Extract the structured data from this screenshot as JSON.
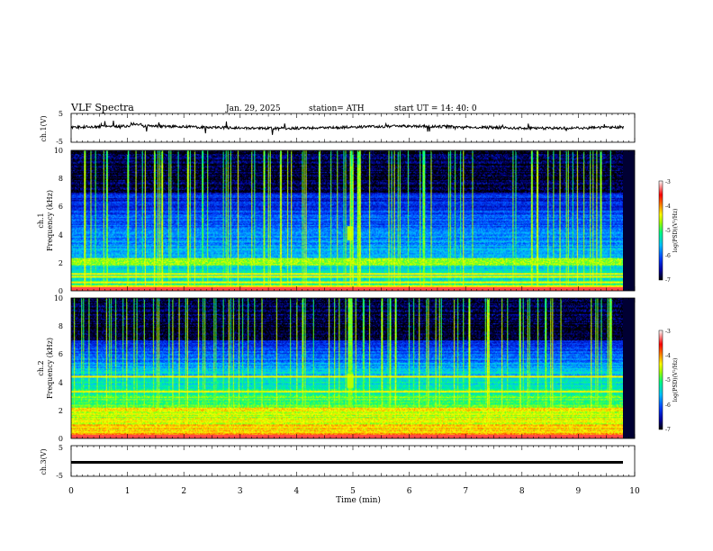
{
  "header": {
    "title": "VLF  Spectra",
    "date": "Jan. 29, 2025",
    "station": "station= ATH",
    "start_ut": "start  UT  =   14: 40: 0"
  },
  "chart_data": [
    {
      "type": "line",
      "title": "",
      "ylabel": "ch.1(V)",
      "ylim": [
        -5,
        5
      ],
      "yticks": [
        "5",
        "-5"
      ],
      "xlim": [
        0,
        10
      ],
      "series": [
        {
          "baseline_value": 0.2,
          "line_color": "#000000"
        }
      ],
      "note": "broadband noisy waveform, amplitude roughly within -1 to +1 V with sharp spikes"
    },
    {
      "type": "heatmap",
      "title": "",
      "ylabel_channel": "ch.1",
      "ylabel": "Frequency  (kHz)",
      "ylim": [
        0,
        10
      ],
      "yticks": [
        "0",
        "2",
        "4",
        "6",
        "8",
        "10"
      ],
      "xlim": [
        0,
        9.8
      ],
      "colorbar": {
        "label": "log(PSD)(V²/Hz)",
        "range": [
          -7,
          -3
        ],
        "ticks": [
          "-3",
          "-4",
          "-5",
          "-6",
          "-7"
        ],
        "colors": [
          "#000000",
          "#0000a0",
          "#0040ff",
          "#00c0ff",
          "#00ff80",
          "#a0ff00",
          "#ffff00",
          "#ff8000",
          "#ff0000",
          "#ffffff"
        ]
      },
      "features": {
        "strong_band_khz": [
          1.8,
          2.3
        ],
        "hum_lines_khz": [
          0.3,
          0.6,
          1.0,
          1.2
        ],
        "impulsive_emissions": "vertical sferic streaks extending to 10 kHz throughout",
        "burst_min": 4.95
      }
    },
    {
      "type": "heatmap",
      "title": "",
      "ylabel_channel": "ch.2",
      "ylabel": "Frequency  (kHz)",
      "ylim": [
        0,
        10
      ],
      "yticks": [
        "0",
        "2",
        "4",
        "6",
        "8",
        "10"
      ],
      "xlim": [
        0,
        9.8
      ],
      "colorbar": {
        "label": "log(PSD)(V²/Hz)",
        "range": [
          -7,
          -3
        ],
        "ticks": [
          "-3",
          "-4",
          "-5",
          "-6",
          "-7"
        ]
      },
      "features": {
        "strong_band_khz": [
          1.9,
          2.2
        ],
        "secondary_lines_khz": [
          3.3,
          4.4
        ],
        "impulsive_emissions": "vertical sferic streaks extending to 10 kHz throughout",
        "burst_min": 4.95
      }
    },
    {
      "type": "line",
      "title": "",
      "ylabel": "ch.3(V)",
      "ylim": [
        -5,
        5
      ],
      "yticks": [
        "5",
        "-5"
      ],
      "xlim": [
        0,
        10
      ],
      "series": [
        {
          "baseline_value": 0.0,
          "line_color": "#000000"
        }
      ],
      "note": "flat thick trace near 0 V"
    }
  ],
  "xaxis": {
    "label": "Time  (min)",
    "ticks": [
      "0",
      "1",
      "2",
      "3",
      "4",
      "5",
      "6",
      "7",
      "8",
      "9",
      "10"
    ],
    "range": [
      0,
      10
    ]
  }
}
